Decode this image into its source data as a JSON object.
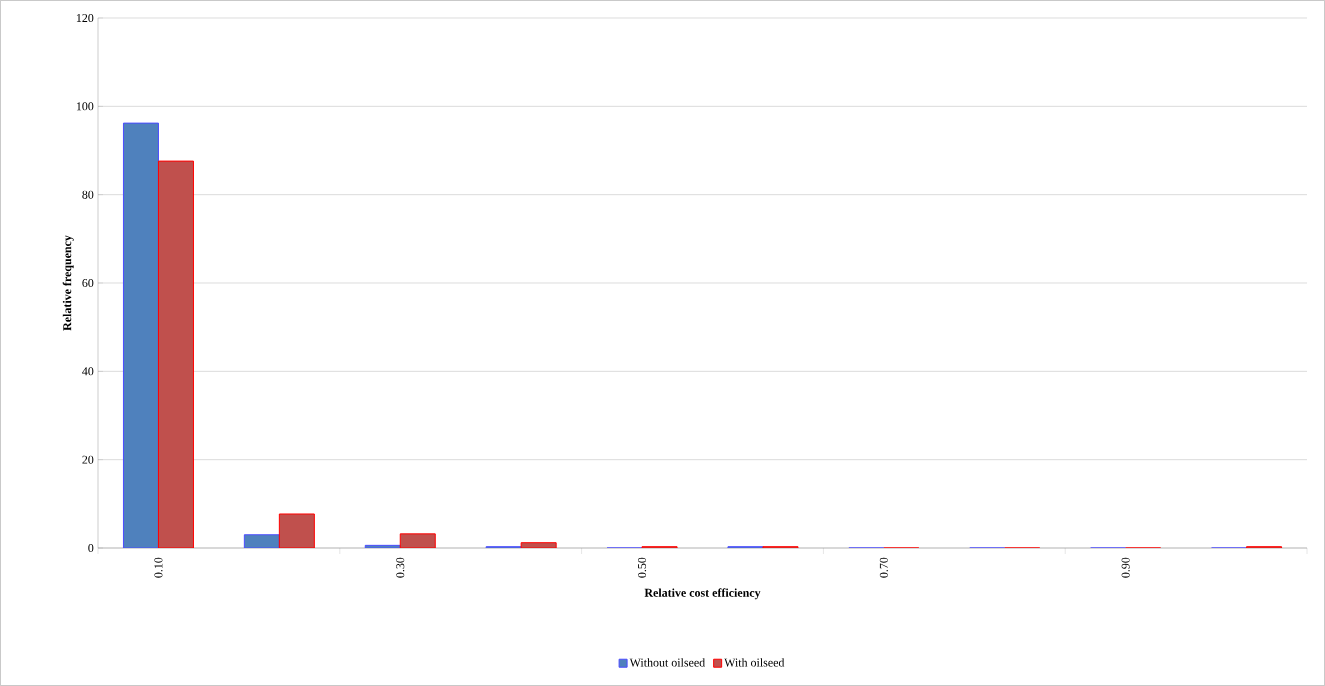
{
  "chart_data": {
    "type": "bar",
    "xlabel": "Relative cost efficiency",
    "ylabel": "Relative frequency",
    "categories": [
      "0.10",
      null,
      "0.30",
      null,
      "0.50",
      null,
      "0.70",
      null,
      "0.90",
      null
    ],
    "series": [
      {
        "name": "Without oilseed",
        "color": "#4f81bd",
        "values": [
          96.2,
          3.0,
          0.6,
          0.3,
          0,
          0.3,
          0,
          0,
          0,
          0
        ]
      },
      {
        "name": "With oilseed",
        "color": "#c0504d",
        "values": [
          87.6,
          7.7,
          3.2,
          1.2,
          0.3,
          0.3,
          0,
          0,
          0,
          0.3
        ]
      }
    ],
    "ylim": [
      0,
      120
    ],
    "yticks": [
      0,
      20,
      40,
      60,
      80,
      100,
      120
    ],
    "grid": "y",
    "legend": "bottom"
  }
}
